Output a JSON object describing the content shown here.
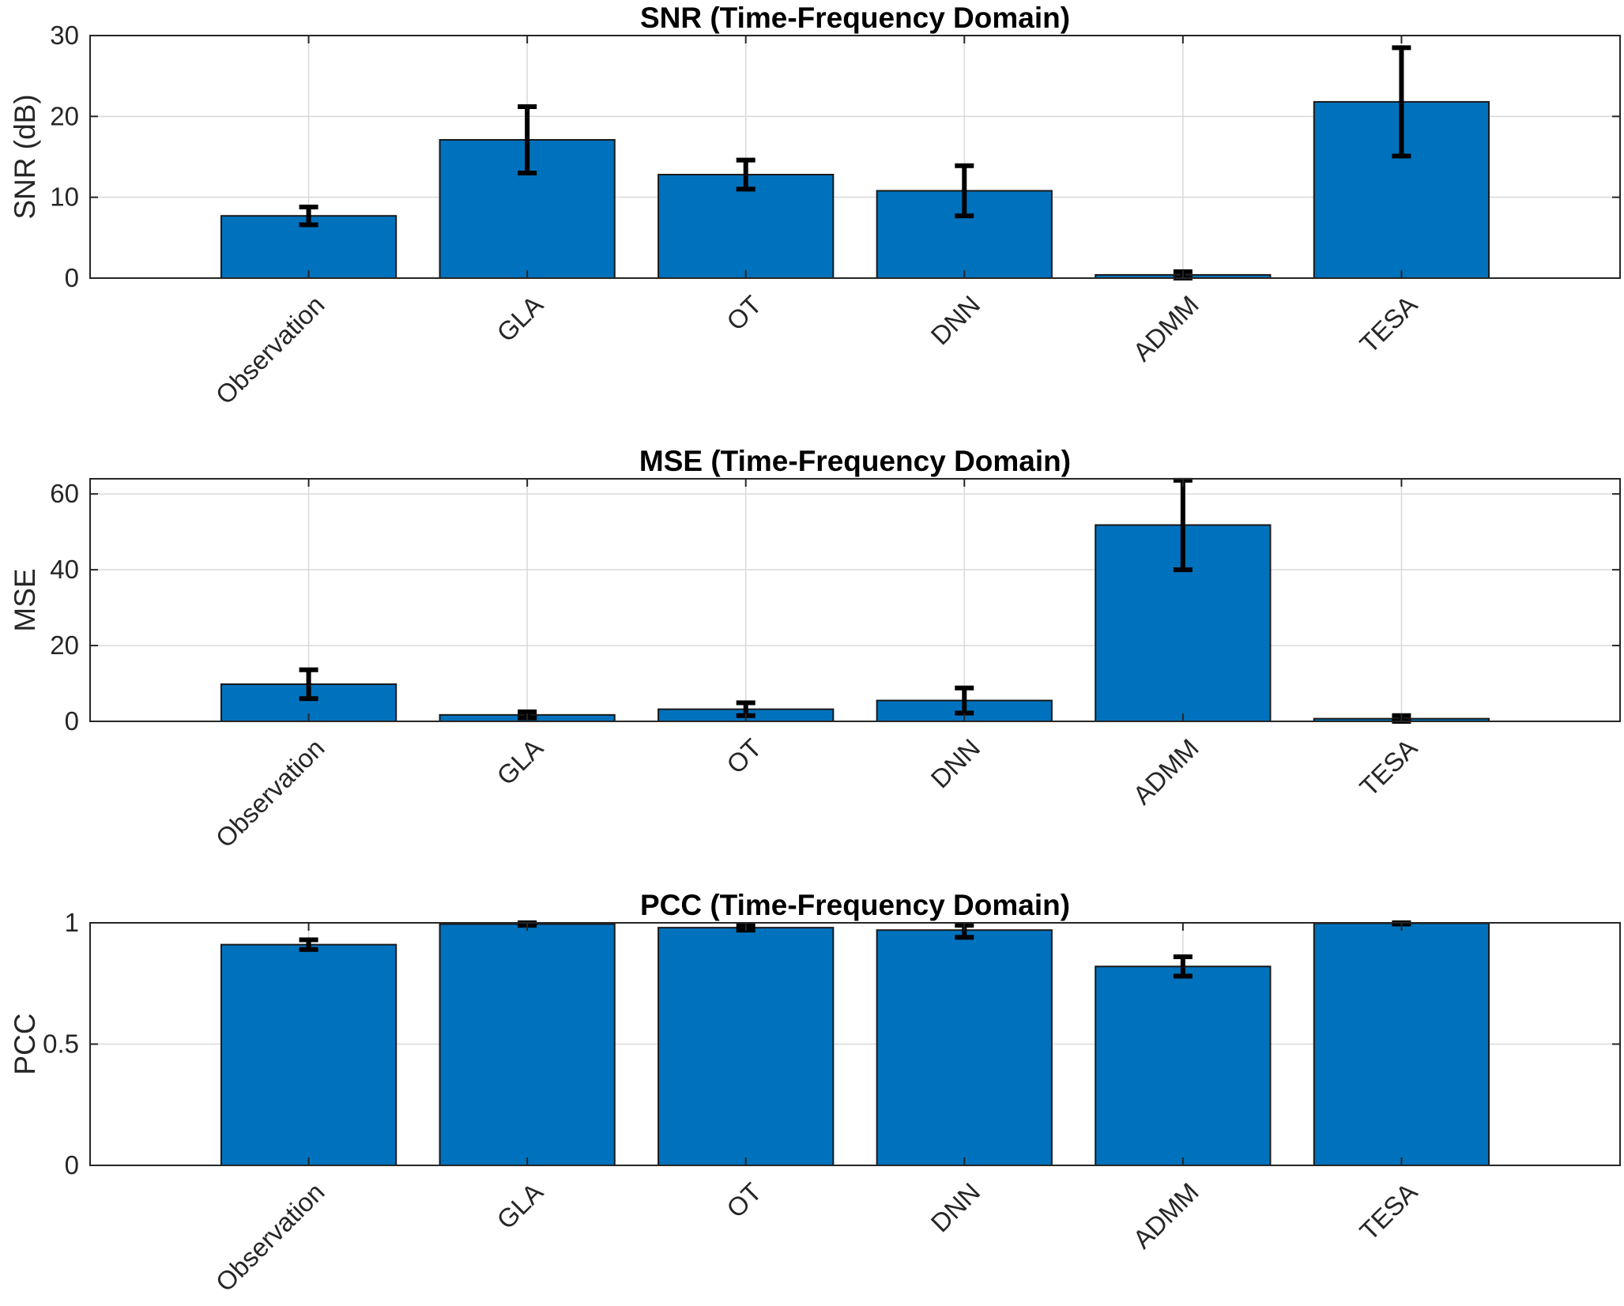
{
  "chart_data": [
    {
      "type": "bar",
      "title": "SNR (Time-Frequency Domain)",
      "ylabel": "SNR (dB)",
      "xlabel": "",
      "categories": [
        "Observation",
        "GLA",
        "OT",
        "DNN",
        "ADMM",
        "TESA"
      ],
      "values": [
        7.7,
        17.1,
        12.8,
        10.8,
        0.4,
        21.8
      ],
      "error_low": [
        6.6,
        13.0,
        11.0,
        7.7,
        0.0,
        15.1
      ],
      "error_high": [
        8.8,
        21.2,
        14.6,
        13.9,
        0.8,
        28.5
      ],
      "ylim": [
        0,
        30
      ],
      "yticks": [
        0,
        10,
        20,
        30
      ],
      "ytick_labels": [
        "0",
        "10",
        "20",
        "30"
      ],
      "grid": true,
      "bar_color": "#0072BD"
    },
    {
      "type": "bar",
      "title": "MSE (Time-Frequency Domain)",
      "ylabel": "MSE",
      "xlabel": "",
      "categories": [
        "Observation",
        "GLA",
        "OT",
        "DNN",
        "ADMM",
        "TESA"
      ],
      "values": [
        9.8,
        1.7,
        3.2,
        5.5,
        51.8,
        0.7
      ],
      "error_low": [
        6.0,
        0.9,
        1.5,
        2.2,
        40.0,
        0.0
      ],
      "error_high": [
        13.6,
        2.5,
        4.9,
        8.8,
        63.6,
        1.5
      ],
      "ylim": [
        0,
        64
      ],
      "yticks": [
        0,
        20,
        40,
        60
      ],
      "ytick_labels": [
        "0",
        "20",
        "40",
        "60"
      ],
      "grid": true,
      "bar_color": "#0072BD"
    },
    {
      "type": "bar",
      "title": "PCC (Time-Frequency Domain)",
      "ylabel": "PCC",
      "xlabel": "",
      "categories": [
        "Observation",
        "GLA",
        "OT",
        "DNN",
        "ADMM",
        "TESA"
      ],
      "values": [
        0.91,
        0.995,
        0.98,
        0.97,
        0.82,
        0.998
      ],
      "error_low": [
        0.89,
        0.99,
        0.97,
        0.94,
        0.78,
        0.995
      ],
      "error_high": [
        0.93,
        1.0,
        0.99,
        0.99,
        0.86,
        1.0
      ],
      "ylim": [
        0,
        1
      ],
      "yticks": [
        0,
        0.5,
        1
      ],
      "ytick_labels": [
        "0",
        "0.5",
        "1"
      ],
      "grid": true,
      "bar_color": "#0072BD"
    }
  ]
}
